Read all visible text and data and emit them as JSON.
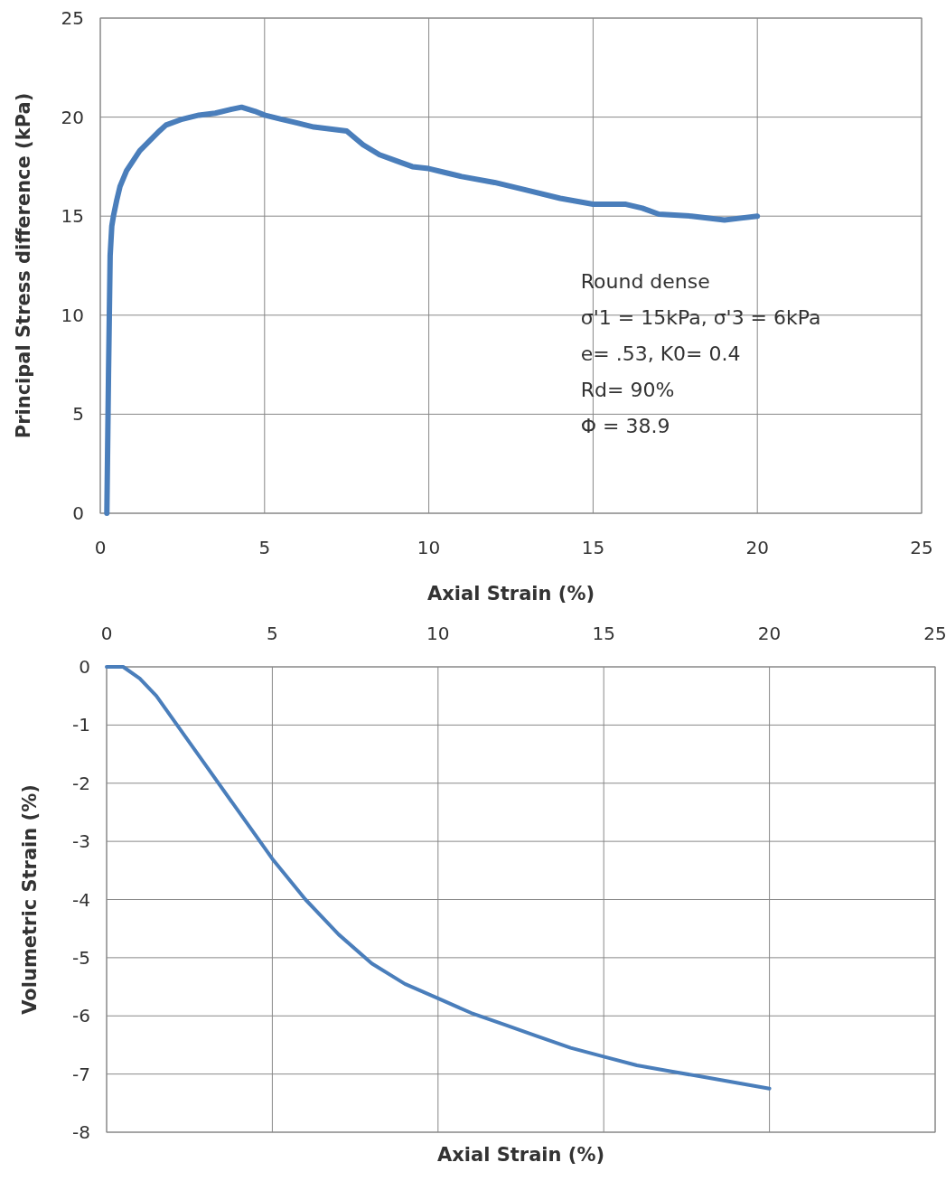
{
  "chart_data": [
    {
      "type": "line",
      "xlabel": "Axial Strain (%)",
      "ylabel": "Principal Stress difference (kPa)",
      "x": [
        0.2,
        0.25,
        0.3,
        0.35,
        0.4,
        0.5,
        0.6,
        0.8,
        1,
        1.2,
        1.5,
        1.8,
        2,
        2.5,
        3,
        3.5,
        4,
        4.3,
        4.7,
        5,
        5.5,
        6,
        6.5,
        7,
        7.5,
        8,
        8.5,
        9,
        9.5,
        10,
        10.5,
        11,
        12,
        13,
        14,
        15,
        16,
        16.5,
        17,
        18,
        19,
        19.5,
        20
      ],
      "series": [
        {
          "color": "#4a7ebb",
          "values": [
            0,
            7,
            13,
            14.5,
            15,
            15.8,
            16.5,
            17.3,
            17.8,
            18.3,
            18.8,
            19.3,
            19.6,
            19.9,
            20.1,
            20.2,
            20.4,
            20.5,
            20.3,
            20.1,
            19.9,
            19.7,
            19.5,
            19.4,
            19.3,
            18.6,
            18.1,
            17.8,
            17.5,
            17.4,
            17.2,
            17,
            16.7,
            16.3,
            15.9,
            15.6,
            15.6,
            15.4,
            15.1,
            15,
            14.8,
            14.9,
            15
          ]
        }
      ],
      "xlim": [
        0,
        25
      ],
      "xticks": [
        0,
        5,
        10,
        15,
        20,
        25
      ],
      "ylim": [
        0,
        25
      ],
      "yticks": [
        0,
        5,
        10,
        15,
        20,
        25
      ],
      "grid": true,
      "line_style": "solid",
      "marker": "none",
      "annotations": [
        "Round dense",
        "σ'1 = 15kPa, σ'3 = 6kPa",
        "e= .53, K0= 0.4",
        "Rd= 90%",
        "Φ = 38.9"
      ]
    },
    {
      "type": "line",
      "xlabel": "Axial Strain (%)",
      "ylabel": "Volumetric Strain (%)",
      "x": [
        0,
        0.5,
        1,
        1.5,
        2,
        3,
        4,
        5,
        6,
        7,
        8,
        9,
        10,
        11,
        12,
        13,
        14,
        15,
        16,
        17,
        18,
        19,
        20
      ],
      "series": [
        {
          "color": "#4a7ebb",
          "values": [
            0,
            0,
            -0.2,
            -0.5,
            -0.9,
            -1.7,
            -2.5,
            -3.3,
            -4.0,
            -4.6,
            -5.1,
            -5.45,
            -5.7,
            -5.95,
            -6.15,
            -6.35,
            -6.55,
            -6.7,
            -6.85,
            -6.95,
            -7.05,
            -7.15,
            -7.25
          ]
        }
      ],
      "xlim": [
        0,
        25
      ],
      "xticks": [
        0,
        5,
        10,
        15,
        20,
        25
      ],
      "ylim": [
        -8,
        0
      ],
      "yticks": [
        0,
        -1,
        -2,
        -3,
        -4,
        -5,
        -6,
        -7,
        -8
      ],
      "grid": true,
      "line_style": "solid",
      "marker": "none"
    }
  ]
}
